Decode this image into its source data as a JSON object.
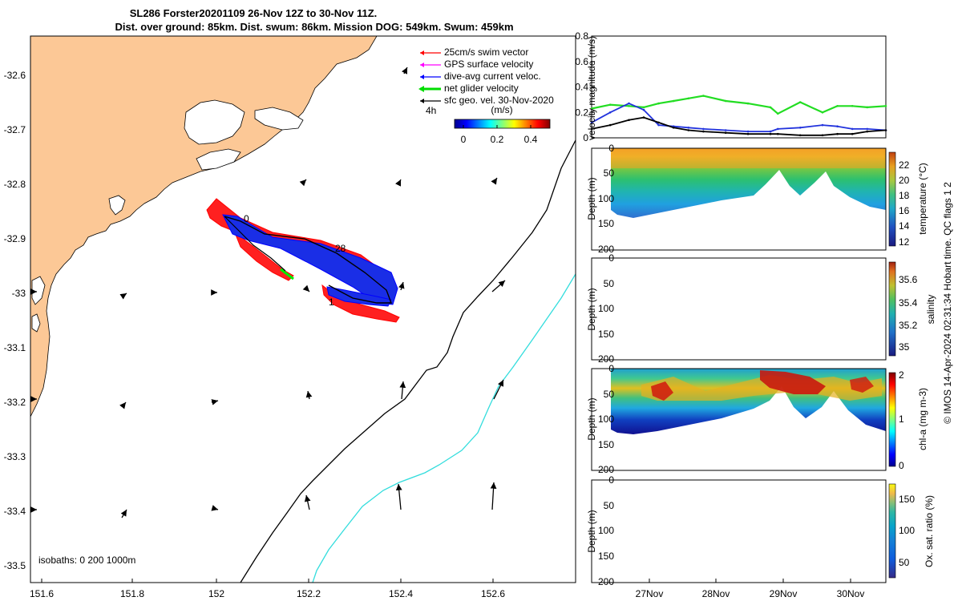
{
  "title": {
    "line1": "SL286 Forster20201109 26-Nov 12Z to 30-Nov 11Z.",
    "line2": "Dist. over ground: 85km. Dist. swum: 86km. Mission DOG: 549km. Swum: 459km"
  },
  "map": {
    "xticks": [
      "151.6",
      "151.8",
      "152",
      "152.2",
      "152.4",
      "152.6"
    ],
    "yticks": [
      "-32.6",
      "-32.7",
      "-32.8",
      "-32.9",
      "-33",
      "-33.1",
      "-33.2",
      "-33.3",
      "-33.4",
      "-33.5"
    ],
    "legend": [
      {
        "label": "25cm/s swim vector",
        "color": "#ff0000"
      },
      {
        "label": "GPS surface velocity",
        "color": "#ff00ff"
      },
      {
        "label": "dive-avg current veloc.",
        "color": "#0000ff"
      },
      {
        "label": "net glider velocity",
        "color": "#00dd00"
      },
      {
        "label": "sfc geo. vel. 30-Nov-2020",
        "color": "#000000"
      }
    ],
    "scale_label": "4h",
    "colorbar": {
      "title": "(m/s)",
      "ticks": [
        "0",
        "0.2",
        "0.4"
      ]
    },
    "isobaths_label": "isobaths: 0   200  1000m",
    "track_labels": [
      "0",
      "28",
      "1"
    ],
    "land_color": "#fcc896",
    "isobath_200_color": "#000000",
    "isobath_1000_color": "#33dddd"
  },
  "chart_data": [
    {
      "type": "line",
      "ylabel": "velocity magnitude (m/s)",
      "ylim": [
        0,
        0.8
      ],
      "yticks": [
        "0",
        "0.2",
        "0.4",
        "0.6",
        "0.8"
      ],
      "x": [
        "26.5",
        "26.75",
        "27.0",
        "27.2",
        "27.4",
        "27.6",
        "27.8",
        "28.0",
        "28.3",
        "28.6",
        "28.9",
        "29.0",
        "29.3",
        "29.6",
        "29.8",
        "30.0",
        "30.2",
        "30.45"
      ],
      "series": [
        {
          "color": "#22dd22",
          "values": [
            0.23,
            0.26,
            0.25,
            0.24,
            0.27,
            0.29,
            0.31,
            0.33,
            0.29,
            0.27,
            0.24,
            0.19,
            0.28,
            0.2,
            0.25,
            0.25,
            0.24,
            0.25
          ]
        },
        {
          "color": "#2233dd",
          "values": [
            0.12,
            0.2,
            0.27,
            0.22,
            0.1,
            0.09,
            0.08,
            0.07,
            0.06,
            0.05,
            0.05,
            0.07,
            0.08,
            0.1,
            0.09,
            0.07,
            0.07,
            0.06
          ]
        },
        {
          "color": "#000000",
          "values": [
            0.07,
            0.1,
            0.14,
            0.16,
            0.12,
            0.08,
            0.06,
            0.05,
            0.04,
            0.03,
            0.03,
            0.03,
            0.02,
            0.02,
            0.03,
            0.03,
            0.05,
            0.06
          ]
        }
      ]
    },
    {
      "type": "heatmap",
      "ylabel": "Depth (m)",
      "clabel": "temperature (°C)",
      "yticks": [
        "0",
        "50",
        "100",
        "150",
        "200"
      ],
      "cticks": [
        "12",
        "14",
        "16",
        "18",
        "20",
        "22"
      ],
      "crange": [
        11.7,
        23.5
      ]
    },
    {
      "type": "heatmap",
      "ylabel": "Depth (m)",
      "clabel": "salinity",
      "yticks": [
        "0",
        "50",
        "100",
        "150",
        "200"
      ],
      "cticks": [
        "35",
        "35.2",
        "35.4",
        "35.6"
      ],
      "crange": [
        34.9,
        35.75
      ]
    },
    {
      "type": "heatmap",
      "ylabel": "Depth (m)",
      "clabel": "chl-a (mg m-3)",
      "yticks": [
        "0",
        "50",
        "100",
        "150",
        "200"
      ],
      "cticks": [
        "0",
        "1",
        "2"
      ],
      "crange": [
        0,
        2
      ]
    },
    {
      "type": "heatmap",
      "ylabel": "Depth (m)",
      "clabel": "Ox. sat. ratio (%)",
      "yticks": [
        "0",
        "50",
        "100",
        "150",
        "200"
      ],
      "cticks": [
        "50",
        "100",
        "150"
      ],
      "crange": [
        20,
        170
      ],
      "xticks": [
        "27Nov",
        "28Nov",
        "29Nov",
        "30Nov"
      ]
    }
  ],
  "footer": "© IMOS 14-Apr-2024 02:31:34 Hobart time. QC flags 1  2"
}
